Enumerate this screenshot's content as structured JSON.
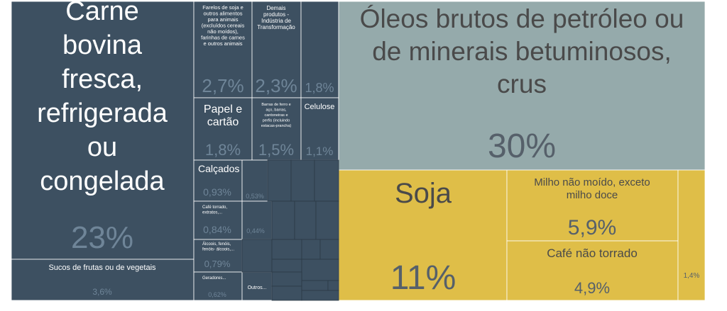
{
  "chart_data": {
    "type": "treemap",
    "colors": {
      "manufactured": "#3d5061",
      "mineral": "#95aaab",
      "agro": "#dfbe48",
      "border": "#ffffff",
      "pct_light": "#6f8598",
      "pct_dark": "#56606a",
      "label_light": "#ffffff",
      "label_dark": "#4a4a4a"
    },
    "items": [
      {
        "label": "Carne bovina fresca, refrigerada ou congelada",
        "value_pct": "23%",
        "group": "manufactured"
      },
      {
        "label": "Sucos de frutas ou de vegetais",
        "value_pct": "3,6%",
        "group": "manufactured"
      },
      {
        "label": "Farelos de soja e outros alimentos para animais (excluídos cereais não moídos), farinhas de carnes e outros animais",
        "value_pct": "2,7%",
        "group": "manufactured"
      },
      {
        "label": "Demais produtos - Indústria de Transformação",
        "value_pct": "2,3%",
        "group": "manufactured"
      },
      {
        "label": "",
        "value_pct": "1,8%",
        "group": "manufactured"
      },
      {
        "label": "Papel e cartão",
        "value_pct": "1,8%",
        "group": "manufactured"
      },
      {
        "label": "Barras de ferro e aço, barras, cantoneiras e perfis (incluindo estacas-prancha)",
        "value_pct": "1,5%",
        "group": "manufactured"
      },
      {
        "label": "Celulose",
        "value_pct": "1,1%",
        "group": "manufactured"
      },
      {
        "label": "Calçados",
        "value_pct": "0,93%",
        "group": "manufactured"
      },
      {
        "label": "",
        "value_pct": "0,53%",
        "group": "manufactured"
      },
      {
        "label": "Café torrado, extratos,...",
        "value_pct": "0,84%",
        "group": "manufactured"
      },
      {
        "label": "",
        "value_pct": "0,44%",
        "group": "manufactured"
      },
      {
        "label": "Álcoois, fenóis, fenóis- álcoois,...",
        "value_pct": "0,79%",
        "group": "manufactured"
      },
      {
        "label": "Geradores...",
        "value_pct": "0,62%",
        "group": "manufactured"
      },
      {
        "label": "Outros...",
        "value_pct": "",
        "group": "manufactured"
      },
      {
        "label": "Óleos brutos de petróleo ou de minerais betuminosos, crus",
        "value_pct": "30%",
        "group": "mineral"
      },
      {
        "label": "Soja",
        "value_pct": "11%",
        "group": "agro"
      },
      {
        "label": "Milho não moído, exceto milho doce",
        "value_pct": "5,9%",
        "group": "agro"
      },
      {
        "label": "Café não torrado",
        "value_pct": "4,9%",
        "group": "agro"
      },
      {
        "label": "",
        "value_pct": "1,4%",
        "group": "agro"
      }
    ]
  }
}
